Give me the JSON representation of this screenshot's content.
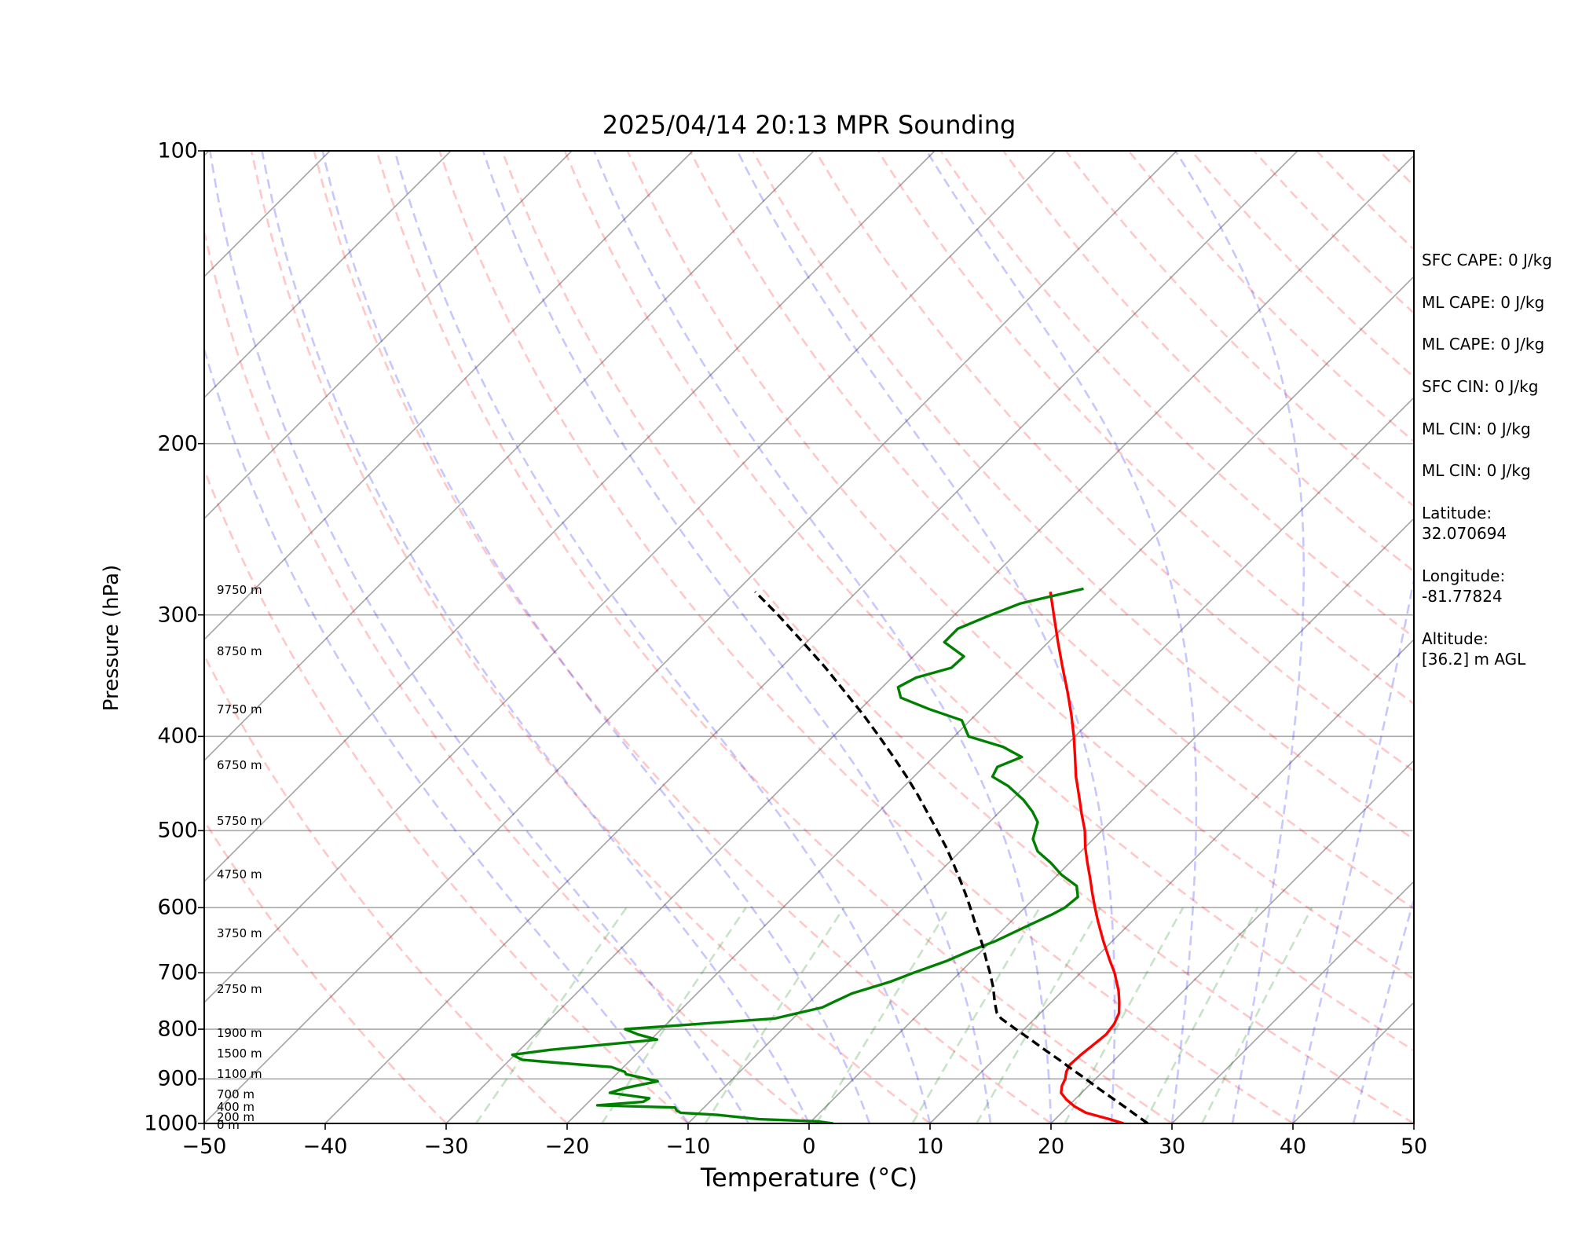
{
  "chart_data": {
    "type": "line",
    "title": "2025/04/14 20:13 MPR Sounding",
    "xlabel": "Temperature (°C)",
    "ylabel": "Pressure (hPa)",
    "xlim": [
      -50,
      50
    ],
    "ylim": [
      1000,
      100
    ],
    "yscale": "log",
    "skew": "45-degree skew-T",
    "grid": true,
    "x_ticks": [
      "−50",
      "−40",
      "−30",
      "−20",
      "−10",
      "0",
      "10",
      "20",
      "30",
      "40",
      "50"
    ],
    "y_ticks": [
      "100",
      "200",
      "300",
      "400",
      "500",
      "600",
      "700",
      "800",
      "900",
      "1000"
    ],
    "height_labels": [
      {
        "text": "0 m",
        "p": 1003
      },
      {
        "text": "200 m",
        "p": 985
      },
      {
        "text": "400 m",
        "p": 962
      },
      {
        "text": "700 m",
        "p": 934
      },
      {
        "text": "1100 m",
        "p": 890
      },
      {
        "text": "1500 m",
        "p": 848
      },
      {
        "text": "1900 m",
        "p": 808
      },
      {
        "text": "2750 m",
        "p": 727
      },
      {
        "text": "3750 m",
        "p": 637
      },
      {
        "text": "4750 m",
        "p": 555
      },
      {
        "text": "5750 m",
        "p": 489
      },
      {
        "text": "6750 m",
        "p": 428
      },
      {
        "text": "7750 m",
        "p": 375
      },
      {
        "text": "8750 m",
        "p": 327
      },
      {
        "text": "9750 m",
        "p": 283
      }
    ],
    "series": [
      {
        "color": "#ff0000",
        "points": [
          [
            1000,
            26.0
          ],
          [
            990,
            24.5
          ],
          [
            975,
            22.0
          ],
          [
            960,
            20.5
          ],
          [
            945,
            19.3
          ],
          [
            930,
            18.3
          ],
          [
            915,
            17.8
          ],
          [
            900,
            17.5
          ],
          [
            885,
            17.0
          ],
          [
            870,
            16.7
          ],
          [
            850,
            16.8
          ],
          [
            830,
            17.0
          ],
          [
            810,
            17.2
          ],
          [
            790,
            17.0
          ],
          [
            770,
            16.5
          ],
          [
            750,
            15.6
          ],
          [
            730,
            14.6
          ],
          [
            700,
            12.8
          ],
          [
            680,
            11.4
          ],
          [
            650,
            9.3
          ],
          [
            620,
            7.2
          ],
          [
            600,
            5.8
          ],
          [
            580,
            4.4
          ],
          [
            560,
            3.0
          ],
          [
            540,
            1.5
          ],
          [
            520,
            0.0
          ],
          [
            500,
            -1.4
          ],
          [
            480,
            -3.1
          ],
          [
            460,
            -4.8
          ],
          [
            440,
            -6.6
          ],
          [
            420,
            -8.3
          ],
          [
            400,
            -10.1
          ],
          [
            380,
            -12.1
          ],
          [
            360,
            -14.3
          ],
          [
            340,
            -16.7
          ],
          [
            320,
            -19.2
          ],
          [
            300,
            -21.8
          ],
          [
            284,
            -24.0
          ]
        ]
      },
      {
        "color": "#008000",
        "points": [
          [
            1000,
            2.0
          ],
          [
            995,
            0.5
          ],
          [
            990,
            -4.5
          ],
          [
            980,
            -8.3
          ],
          [
            975,
            -11.5
          ],
          [
            970,
            -12.0
          ],
          [
            963,
            -12.4
          ],
          [
            958,
            -19.0
          ],
          [
            950,
            -15.5
          ],
          [
            942,
            -15.3
          ],
          [
            930,
            -19.0
          ],
          [
            920,
            -18.2
          ],
          [
            905,
            -16.0
          ],
          [
            890,
            -19.2
          ],
          [
            885,
            -19.5
          ],
          [
            875,
            -21.0
          ],
          [
            865,
            -26.5
          ],
          [
            860,
            -29.0
          ],
          [
            850,
            -30.2
          ],
          [
            840,
            -27.5
          ],
          [
            830,
            -23.5
          ],
          [
            820,
            -19.5
          ],
          [
            810,
            -21.5
          ],
          [
            800,
            -23.0
          ],
          [
            780,
            -11.5
          ],
          [
            760,
            -8.5
          ],
          [
            750,
            -8.0
          ],
          [
            735,
            -7.2
          ],
          [
            715,
            -5.0
          ],
          [
            700,
            -3.8
          ],
          [
            680,
            -2.0
          ],
          [
            665,
            -1.0
          ],
          [
            650,
            0.3
          ],
          [
            630,
            1.5
          ],
          [
            610,
            2.8
          ],
          [
            600,
            3.3
          ],
          [
            585,
            3.5
          ],
          [
            570,
            2.5
          ],
          [
            555,
            0.3
          ],
          [
            540,
            -1.5
          ],
          [
            525,
            -3.6
          ],
          [
            510,
            -5.0
          ],
          [
            500,
            -5.5
          ],
          [
            490,
            -6.0
          ],
          [
            478,
            -7.3
          ],
          [
            465,
            -9.0
          ],
          [
            450,
            -11.4
          ],
          [
            440,
            -13.5
          ],
          [
            430,
            -13.9
          ],
          [
            420,
            -12.7
          ],
          [
            410,
            -15.1
          ],
          [
            400,
            -18.8
          ],
          [
            385,
            -20.7
          ],
          [
            375,
            -24.3
          ],
          [
            365,
            -27.6
          ],
          [
            356,
            -28.7
          ],
          [
            348,
            -28.0
          ],
          [
            340,
            -25.9
          ],
          [
            331,
            -25.8
          ],
          [
            320,
            -28.6
          ],
          [
            310,
            -28.6
          ],
          [
            300,
            -27.0
          ],
          [
            292,
            -25.5
          ],
          [
            282,
            -21.5
          ]
        ]
      },
      {
        "color": "#000000",
        "dashed": true,
        "points": [
          [
            1000,
            28.0
          ],
          [
            980,
            26.3
          ],
          [
            960,
            24.6
          ],
          [
            940,
            22.8
          ],
          [
            920,
            21.0
          ],
          [
            900,
            19.2
          ],
          [
            880,
            17.3
          ],
          [
            860,
            15.4
          ],
          [
            840,
            13.4
          ],
          [
            820,
            11.4
          ],
          [
            800,
            9.3
          ],
          [
            780,
            7.2
          ],
          [
            770,
            6.4
          ],
          [
            750,
            5.3
          ],
          [
            725,
            4.0
          ],
          [
            700,
            2.5
          ],
          [
            680,
            1.2
          ],
          [
            660,
            -0.1
          ],
          [
            640,
            -1.5
          ],
          [
            620,
            -3.0
          ],
          [
            600,
            -4.5
          ],
          [
            580,
            -6.1
          ],
          [
            560,
            -7.8
          ],
          [
            540,
            -9.6
          ],
          [
            520,
            -11.5
          ],
          [
            500,
            -13.6
          ],
          [
            480,
            -15.8
          ],
          [
            460,
            -18.1
          ],
          [
            440,
            -20.6
          ],
          [
            420,
            -23.3
          ],
          [
            400,
            -26.2
          ],
          [
            380,
            -29.3
          ],
          [
            360,
            -32.7
          ],
          [
            340,
            -36.3
          ],
          [
            320,
            -40.3
          ],
          [
            300,
            -44.6
          ],
          [
            284,
            -48.4
          ]
        ]
      }
    ],
    "background_lines": {
      "dry_adiabats": {
        "color": "#ff0000",
        "alpha": 0.25,
        "dashed": true
      },
      "moist_adiabats": {
        "color": "#0000ff",
        "alpha": 0.25,
        "dashed": true
      },
      "mixing_ratio": {
        "color": "#008000",
        "alpha": 0.25,
        "dashed": true
      },
      "isotherms": {
        "color": "#808080",
        "alpha": 0.6
      }
    }
  },
  "info_panel": {
    "sfc_cape": "SFC CAPE: 0 J/kg",
    "ml_cape_1": "ML CAPE: 0 J/kg",
    "ml_cape_2": "ML CAPE: 0 J/kg",
    "sfc_cin": "SFC CIN: 0 J/kg",
    "ml_cin_1": "ML CIN: 0 J/kg",
    "ml_cin_2": "ML CIN: 0 J/kg",
    "latitude_label": "Latitude:",
    "latitude_value": "32.070694",
    "longitude_label": "Longitude:",
    "longitude_value": "-81.77824",
    "altitude_label": "Altitude:",
    "altitude_value": "[36.2] m AGL"
  }
}
